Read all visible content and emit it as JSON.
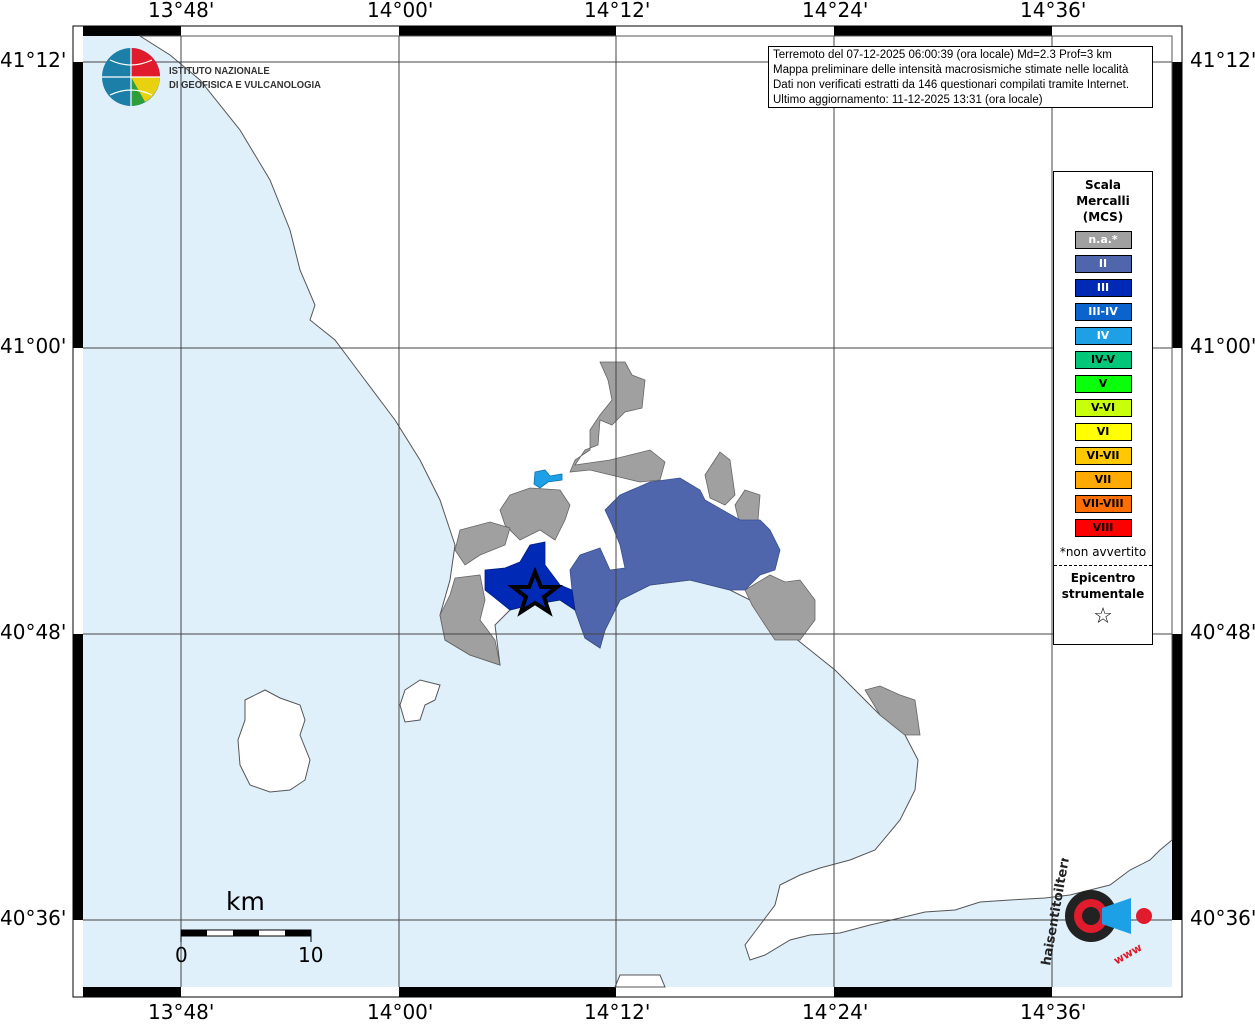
{
  "map": {
    "lon_labels": [
      "13°48'",
      "14°00'",
      "14°12'",
      "14°24'",
      "14°36'"
    ],
    "lat_labels": [
      "41°12'",
      "41°00'",
      "40°48'",
      "40°36'"
    ],
    "colors": {
      "sea": "#dff0fb",
      "land": "#ffffff",
      "na": "#a0a0a0",
      "II": "#4f66ad",
      "III": "#0029b5",
      "IV": "#1ea0e6"
    }
  },
  "logo": {
    "line1": "ISTITUTO NAZIONALE",
    "line2": "DI GEOFISICA E VULCANOLOGIA"
  },
  "info": {
    "line1": "Terremoto del 07-12-2025 06:00:39 (ora locale) Md=2.3 Prof=3 km",
    "line2": "Mappa preliminare delle intensità macrosismiche stimate nelle località",
    "line3": "Dati non verificati estratti da 146 questionari compilati tramite Internet.",
    "line4": "Ultimo aggiornamento: 11-12-2025 13:31 (ora locale)"
  },
  "legend": {
    "title1": "Scala",
    "title2": "Mercalli",
    "title3": "(MCS)",
    "items": [
      {
        "label": "n.a.*",
        "color": "#a0a0a0",
        "text": "#ffffff"
      },
      {
        "label": "II",
        "color": "#4f66ad",
        "text": "#ffffff"
      },
      {
        "label": "III",
        "color": "#0029b5",
        "text": "#ffffff"
      },
      {
        "label": "III-IV",
        "color": "#0a64cc",
        "text": "#ffffff"
      },
      {
        "label": "IV",
        "color": "#1ea0e6",
        "text": "#ffffff"
      },
      {
        "label": "IV-V",
        "color": "#00c878",
        "text": "#000000"
      },
      {
        "label": "V",
        "color": "#0aff0a",
        "text": "#000000"
      },
      {
        "label": "V-VI",
        "color": "#c8ff0a",
        "text": "#000000"
      },
      {
        "label": "VI",
        "color": "#ffff00",
        "text": "#000000"
      },
      {
        "label": "VI-VII",
        "color": "#ffc800",
        "text": "#000000"
      },
      {
        "label": "VII",
        "color": "#ffaa00",
        "text": "#000000"
      },
      {
        "label": "VII-VIII",
        "color": "#ff6e00",
        "text": "#000000"
      },
      {
        "label": "VIII",
        "color": "#ff0000",
        "text": "#000000"
      }
    ],
    "note": "*non avvertito",
    "epi1": "Epicentro",
    "epi2": "strumentale",
    "star": "☆"
  },
  "scalebar": {
    "unit": "km",
    "min": "0",
    "max": "10"
  },
  "badge": {
    "text": "haisentitoilterremoto.it",
    "sub": "www"
  }
}
